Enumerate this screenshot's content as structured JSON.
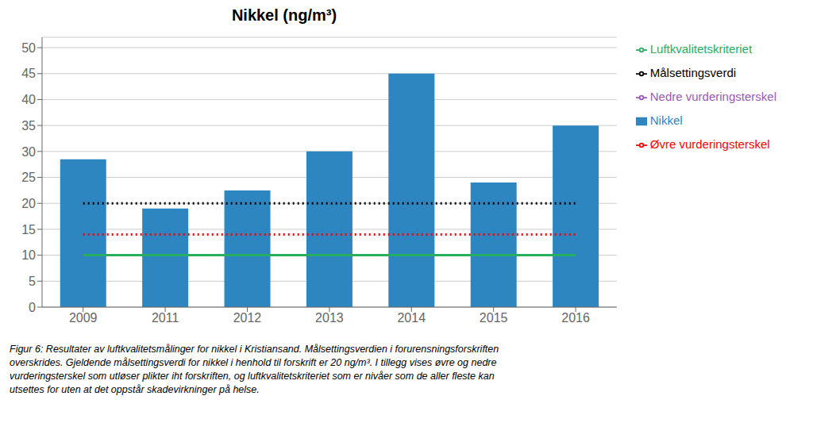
{
  "chart_data": {
    "type": "bar",
    "title": "Nikkel (ng/m³)",
    "categories": [
      "2009",
      "2011",
      "2012",
      "2013",
      "2014",
      "2015",
      "2016"
    ],
    "series": [
      {
        "name": "Nikkel",
        "type": "bar",
        "color": "#2E86C1",
        "values": [
          28.5,
          19.0,
          22.5,
          30.0,
          45.0,
          24.0,
          35.0
        ]
      },
      {
        "name": "Målsettingsverdi",
        "type": "line",
        "color": "black",
        "line_style": "dotted",
        "values": [
          20,
          20,
          20,
          20,
          20,
          20,
          20
        ]
      },
      {
        "name": "Øvre vurderingsterskel",
        "type": "line",
        "color": "red",
        "line_style": "dotted",
        "values": [
          14,
          14,
          14,
          14,
          14,
          14,
          14
        ]
      },
      {
        "name": "Nedre vurderingsterskel",
        "type": "line",
        "color": "#9B59B6",
        "line_style": "solid",
        "values": [
          10,
          10,
          10,
          10,
          10,
          10,
          10
        ]
      },
      {
        "name": "Luftkvalitetskriteriet",
        "type": "line",
        "color": "#27AE60",
        "line_style": "solid",
        "values": [
          10,
          10,
          10,
          10,
          10,
          10,
          10
        ]
      }
    ],
    "ylim": [
      0,
      52
    ],
    "yticks": [
      0,
      5,
      10,
      15,
      20,
      25,
      30,
      35,
      40,
      45,
      50
    ],
    "grid": true,
    "caption": "Figur 6: Resultater av luftkvalitetsmålinger for nikkel i Kristiansand. Målsettingsverdien i forurensningsforskriften\noverskrides. Gjeldende målsettingsverdi for nikkel i henhold til forskrift er 20 ng/m³. I tillegg vises øvre og nedre\nvurderingsterskel som utløser plikter iht forskriften, og luftkvalitetskriteriet som er nivåer som de aller fleste kan\nutsettes for uten at det oppstår skadevirkninger på helse."
  }
}
